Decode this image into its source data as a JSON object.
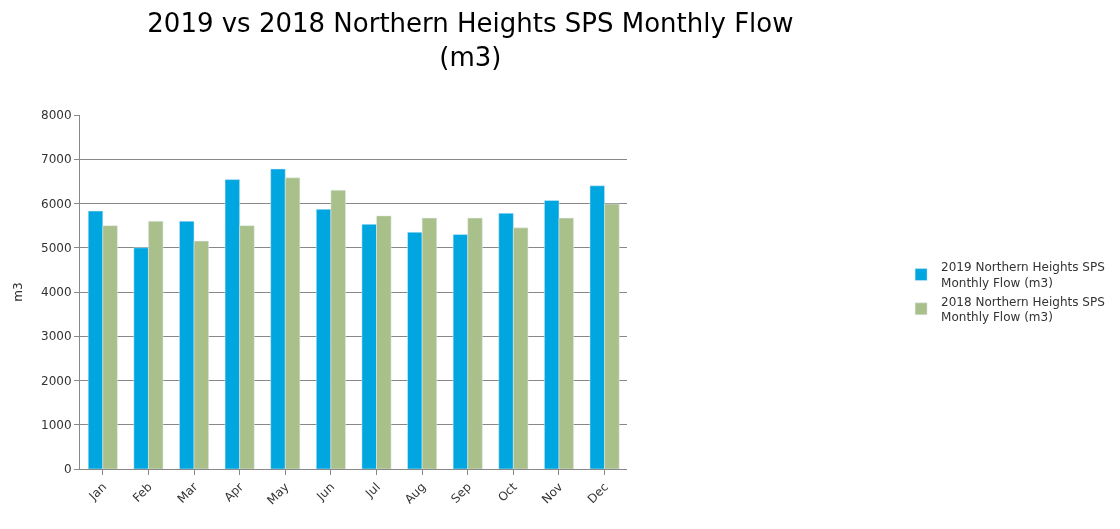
{
  "chart_data": {
    "type": "bar",
    "title": "2019 vs 2018 Northern Heights SPS Monthly Flow\n(m3)",
    "ylabel": "m3",
    "categories": [
      "Jan",
      "Feb",
      "Mar",
      "Apr",
      "May",
      "Jun",
      "Jul",
      "Aug",
      "Sep",
      "Oct",
      "Nov",
      "Dec"
    ],
    "series": [
      {
        "name": "2019 Northern Heights SPS Monthly Flow (m3)",
        "color": "#00a6e0",
        "values": [
          5830,
          5000,
          5600,
          6540,
          6780,
          5870,
          5530,
          5350,
          5300,
          5780,
          6070,
          6400
        ]
      },
      {
        "name": "2018 Northern Heights SPS Monthly Flow (m3)",
        "color": "#a9c08a",
        "values": [
          5500,
          5600,
          5150,
          5500,
          6580,
          6300,
          5720,
          5670,
          5670,
          5450,
          5670,
          5990
        ]
      }
    ],
    "ylim": [
      0,
      8000
    ],
    "yticks": [
      0,
      1000,
      2000,
      3000,
      4000,
      5000,
      6000,
      7000,
      8000
    ],
    "grid": "y",
    "legend": "right"
  }
}
